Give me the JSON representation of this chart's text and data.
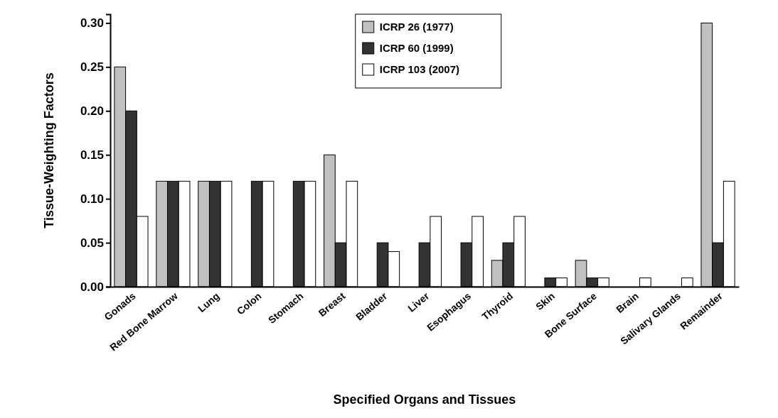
{
  "chart_data": {
    "type": "bar",
    "xlabel": "Specified Organs and Tissues",
    "ylabel": "Tissue-Weighting Factors",
    "categories": [
      "Gonads",
      "Red Bone Marrow",
      "Lung",
      "Colon",
      "Stomach",
      "Breast",
      "Bladder",
      "Liver",
      "Esophagus",
      "Thyroid",
      "Skin",
      "Bone Surface",
      "Brain",
      "Salivary Glands",
      "Remainder"
    ],
    "series": [
      {
        "name": "ICRP 26 (1977)",
        "color": "#c0c0c0",
        "values": [
          0.25,
          0.12,
          0.12,
          null,
          null,
          0.15,
          null,
          null,
          null,
          0.03,
          null,
          0.03,
          null,
          null,
          0.3
        ]
      },
      {
        "name": "ICRP 60 (1999)",
        "color": "#333333",
        "values": [
          0.2,
          0.12,
          0.12,
          0.12,
          0.12,
          0.05,
          0.05,
          0.05,
          0.05,
          0.05,
          0.01,
          0.01,
          null,
          null,
          0.05
        ]
      },
      {
        "name": "ICRP 103 (2007)",
        "color": "#ffffff",
        "values": [
          0.08,
          0.12,
          0.12,
          0.12,
          0.12,
          0.12,
          0.04,
          0.08,
          0.08,
          0.08,
          0.01,
          0.01,
          0.01,
          0.01,
          0.12
        ]
      }
    ],
    "ylim": [
      0,
      0.31
    ],
    "yticks": [
      {
        "value": 0,
        "label": "0.00"
      },
      {
        "value": 0.05,
        "label": "0.05"
      },
      {
        "value": 0.1,
        "label": "0.10"
      },
      {
        "value": 0.15,
        "label": "0.15"
      },
      {
        "value": 0.2,
        "label": "0.20"
      },
      {
        "value": 0.25,
        "label": "0.25"
      },
      {
        "value": 0.3,
        "label": "0.30"
      }
    ],
    "legend": "top"
  }
}
